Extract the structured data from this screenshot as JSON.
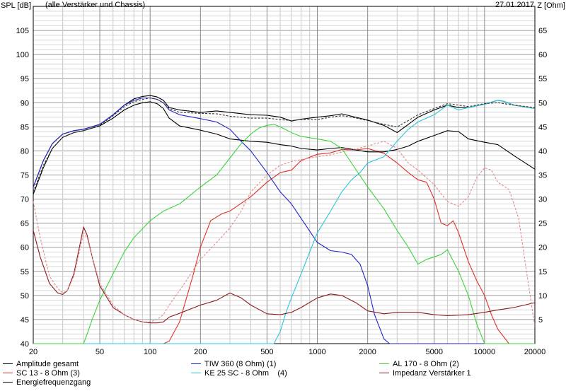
{
  "chart_data": {
    "type": "line",
    "header_left": "(alle Verstärker und Chassis)",
    "header_right": "27.01.2017",
    "ylabel": "SPL [dB]",
    "y2label": "Z [Ohm]",
    "xlim": [
      20,
      20000
    ],
    "xscale": "log",
    "ylim": [
      40,
      110
    ],
    "y2lim": [
      0,
      70
    ],
    "grid": true,
    "xticks": [
      {
        "value": 20,
        "label": "20"
      },
      {
        "value": 50,
        "label": "50"
      },
      {
        "value": 100,
        "label": "100"
      },
      {
        "value": 200,
        "label": "200"
      },
      {
        "value": 500,
        "label": "500"
      },
      {
        "value": 1000,
        "label": "1000"
      },
      {
        "value": 2000,
        "label": "2000"
      },
      {
        "value": 5000,
        "label": "5000"
      },
      {
        "value": 10000,
        "label": "10000"
      },
      {
        "value": 20000,
        "label": "20000"
      }
    ],
    "yticks": [
      105,
      100,
      95,
      90,
      85,
      80,
      75,
      70,
      65,
      60,
      55,
      50,
      45,
      40
    ],
    "y2ticks": [
      65,
      60,
      55,
      50,
      45,
      40,
      35,
      30,
      25,
      20,
      15,
      10,
      5
    ],
    "series": [
      {
        "name": "Amplitude gesamt",
        "color": "#000000",
        "dashed": false,
        "axis": "left",
        "x": [
          20,
          23,
          26,
          30,
          35,
          40,
          50,
          60,
          70,
          80,
          90,
          100,
          110,
          120,
          130,
          150,
          200,
          250,
          300,
          400,
          500,
          600,
          700,
          800,
          1000,
          1200,
          1400,
          1600,
          2000,
          2500,
          3000,
          3500,
          4000,
          5000,
          6000,
          7000,
          8000,
          10000,
          12000,
          13000,
          15000,
          20000
        ],
        "y": [
          72.5,
          78,
          81.5,
          83.5,
          84.2,
          84.5,
          85.5,
          87.5,
          89.5,
          90.8,
          91.3,
          91.5,
          91.2,
          90.5,
          89.0,
          88.5,
          88.0,
          88.3,
          88.0,
          87.5,
          87.4,
          87.0,
          86.2,
          86.6,
          87.0,
          87.3,
          87.7,
          87.2,
          86.4,
          85.3,
          83.8,
          85.5,
          87.0,
          88.5,
          89.5,
          89.0,
          89.0,
          89.7,
          90.5,
          90.3,
          89.5,
          88.8
        ]
      },
      {
        "name": "SC 13 - 8 Ohm (3)",
        "color": "#e0302a",
        "dashed": false,
        "axis": "left",
        "x": [
          20,
          120,
          130,
          150,
          180,
          200,
          230,
          270,
          300,
          400,
          500,
          600,
          700,
          800,
          1000,
          1200,
          1400,
          1700,
          2000,
          2500,
          3000,
          3500,
          4000,
          4500,
          5000,
          5500,
          6000,
          6500,
          7000,
          8000,
          9000,
          10000,
          11000,
          12000,
          14000,
          20000
        ],
        "y": [
          40,
          40,
          40.5,
          44.5,
          54,
          60,
          65.5,
          67,
          67.5,
          70.5,
          73.5,
          75.5,
          76.0,
          78.0,
          79.3,
          79.6,
          80.3,
          80.2,
          80.5,
          79.5,
          77.5,
          75.5,
          74.0,
          73.5,
          70.0,
          65.0,
          64.5,
          65.5,
          63.0,
          57.0,
          53.0,
          50.0,
          46.0,
          43.0,
          40.0,
          40.0
        ]
      },
      {
        "name": "Energiefrequenzgang",
        "color": "#000000",
        "dashed": false,
        "axis": "left",
        "x": [
          20,
          23,
          26,
          30,
          35,
          40,
          50,
          60,
          70,
          80,
          90,
          100,
          110,
          120,
          130,
          150,
          200,
          250,
          300,
          400,
          500,
          600,
          700,
          800,
          1000,
          1200,
          1400,
          1700,
          2000,
          2500,
          3000,
          3500,
          4000,
          5000,
          6000,
          7000,
          8000,
          10000,
          12000,
          15000,
          20000
        ],
        "y": [
          71,
          76.5,
          80.5,
          82.8,
          83.8,
          84.2,
          85.2,
          86.8,
          88.5,
          89.5,
          90.0,
          90.2,
          89.8,
          88.8,
          86.8,
          85.2,
          84.3,
          83.5,
          82.5,
          82.0,
          81.8,
          81.3,
          81.0,
          80.5,
          80.2,
          80.5,
          80.7,
          80.2,
          79.8,
          79.8,
          80.3,
          81.0,
          82.0,
          83.2,
          84.2,
          84.0,
          82.5,
          81.8,
          81.3,
          79.0,
          76.2
        ]
      },
      {
        "name": "TIW 360 (8 Ohm) (1)",
        "color": "#1f25c8",
        "dashed": false,
        "axis": "left",
        "x": [
          20,
          23,
          26,
          30,
          35,
          40,
          50,
          60,
          70,
          80,
          90,
          100,
          110,
          120,
          130,
          150,
          200,
          250,
          300,
          350,
          400,
          500,
          600,
          700,
          800,
          1000,
          1200,
          1400,
          1600,
          1800,
          2000,
          2200,
          2500,
          2700,
          3000,
          20000
        ],
        "y": [
          72.5,
          78,
          81.5,
          83.5,
          84.2,
          84.5,
          85.5,
          87.5,
          89.5,
          90.5,
          91.0,
          91.0,
          90.7,
          90.0,
          88.5,
          87.5,
          86.7,
          86.0,
          84.5,
          82.0,
          80.0,
          75.5,
          71.5,
          69.0,
          66.0,
          61.0,
          59.3,
          59.0,
          58.5,
          56.5,
          52.0,
          46.0,
          41.0,
          40.0,
          40.0,
          40.0
        ]
      },
      {
        "name": "KE 25 SC - 8 Ohm    (4)",
        "color": "#29c6d8",
        "dashed": false,
        "axis": "left",
        "x": [
          20,
          550,
          600,
          650,
          700,
          800,
          900,
          1000,
          1200,
          1400,
          1600,
          1800,
          2000,
          2500,
          3000,
          3500,
          4000,
          5000,
          6000,
          7000,
          8000,
          10000,
          12000,
          13000,
          15000,
          20000
        ],
        "y": [
          40,
          40,
          42.5,
          46.5,
          49.5,
          54.5,
          59.0,
          63.0,
          67.5,
          71.5,
          74.0,
          75.5,
          77.5,
          78.8,
          82.0,
          84.5,
          86.0,
          87.5,
          89.5,
          88.5,
          89.0,
          89.7,
          90.5,
          90.3,
          89.5,
          88.8
        ]
      },
      {
        "name": "AL 170 - 8 Ohm (2)",
        "color": "#3cd23c",
        "dashed": false,
        "axis": "left",
        "x": [
          20,
          40,
          42,
          45,
          50,
          60,
          70,
          80,
          100,
          120,
          150,
          200,
          250,
          300,
          350,
          400,
          450,
          500,
          550,
          600,
          700,
          800,
          1000,
          1200,
          1400,
          1600,
          2000,
          2500,
          3000,
          3500,
          4000,
          4500,
          5000,
          5500,
          6000,
          7000,
          8000,
          9000,
          10000,
          20000
        ],
        "y": [
          40,
          40,
          42,
          45,
          49,
          54.5,
          59,
          62,
          65.5,
          67.5,
          69,
          72.5,
          75,
          78.5,
          81.5,
          83.5,
          84.8,
          85.3,
          85.5,
          85.0,
          83.8,
          83.0,
          82.5,
          82.0,
          80.5,
          77.5,
          72.5,
          68.0,
          63.5,
          60.0,
          56.5,
          57.5,
          58.0,
          58.5,
          59.5,
          55.0,
          50.0,
          44.0,
          40.0,
          40.0
        ]
      },
      {
        "name": "Impedanz Verstärker 1",
        "color": "#8b1a1a",
        "dashed": false,
        "axis": "right",
        "x": [
          20,
          22,
          25,
          28,
          30,
          32,
          35,
          38,
          40,
          42,
          45,
          50,
          60,
          70,
          80,
          90,
          100,
          110,
          120,
          130,
          150,
          200,
          250,
          300,
          350,
          400,
          500,
          600,
          700,
          800,
          1000,
          1200,
          1400,
          1700,
          2000,
          2500,
          3000,
          4000,
          5000,
          6000,
          8000,
          10000,
          12000,
          15000,
          20000
        ],
        "y": [
          23.5,
          18,
          12.5,
          10.5,
          10.2,
          11.0,
          14.5,
          20.5,
          24.2,
          22.5,
          18.0,
          12.0,
          7.5,
          6.0,
          5.0,
          4.5,
          4.3,
          4.3,
          4.5,
          5.5,
          6.3,
          8.0,
          9.0,
          10.5,
          9.5,
          8.0,
          6.2,
          6.0,
          6.5,
          7.5,
          9.5,
          10.3,
          10.0,
          8.5,
          6.8,
          6.2,
          6.5,
          6.5,
          6.0,
          5.8,
          6.0,
          6.5,
          7.0,
          7.5,
          8.5
        ]
      },
      {
        "name": "",
        "color": "#333333",
        "dashed": true,
        "axis": "left",
        "x": [
          20,
          23,
          26,
          30,
          35,
          40,
          50,
          60,
          70,
          80,
          90,
          100,
          110,
          120,
          130,
          150,
          200,
          250,
          300,
          400,
          500,
          600,
          700,
          800,
          1000,
          1200,
          1400,
          1600,
          2000,
          2500,
          3000,
          3500,
          4000,
          5000,
          6000,
          7000,
          8000,
          10000,
          12000,
          15000,
          20000
        ],
        "y": [
          71.5,
          77,
          80.5,
          82.8,
          83.8,
          84.2,
          85.3,
          87.3,
          89.2,
          90.2,
          90.7,
          91.0,
          90.7,
          90.0,
          88.8,
          88.0,
          87.8,
          87.7,
          87.2,
          86.8,
          86.8,
          86.5,
          86.3,
          86.5,
          86.5,
          87.0,
          87.3,
          87.0,
          86.3,
          85.5,
          85.0,
          86.3,
          87.5,
          88.8,
          89.8,
          89.5,
          89.2,
          89.8,
          90.0,
          89.5,
          89.0
        ]
      },
      {
        "name": "",
        "color": "#e08a8a",
        "dashed": true,
        "axis": "right",
        "x": [
          20,
          22,
          25,
          28,
          30,
          32,
          35,
          38,
          40,
          42,
          45,
          50,
          60,
          70,
          80,
          90,
          100,
          110,
          120,
          130,
          150,
          200,
          250,
          300,
          350,
          400,
          500,
          600,
          700,
          800,
          1000,
          1200,
          1500,
          2000,
          2500,
          3000,
          3500,
          4000,
          5000,
          6000,
          7000,
          8000,
          9000,
          10000,
          11000,
          12000,
          14000,
          16000,
          18000,
          20000
        ],
        "y": [
          29.5,
          22,
          14,
          11.5,
          10.5,
          11.0,
          14.0,
          19.5,
          23.0,
          22.0,
          18.0,
          12.5,
          8.0,
          6.0,
          5.0,
          4.5,
          4.5,
          5.0,
          6.0,
          8.0,
          11.0,
          17.5,
          21.0,
          24.0,
          27.5,
          31.5,
          35.0,
          37.0,
          37.8,
          38.2,
          38.8,
          39.2,
          40.0,
          41.0,
          42.0,
          40.5,
          37.5,
          36.0,
          33.0,
          29.5,
          28.5,
          30.5,
          34.5,
          36.5,
          36.0,
          33.5,
          32.0,
          26.0,
          14.0,
          3.5
        ]
      }
    ]
  },
  "legend": [
    {
      "label": "Amplitude gesamt",
      "color": "#000000"
    },
    {
      "label": "TIW 360 (8 Ohm) (1)",
      "color": "#1f25c8"
    },
    {
      "label": "AL 170 - 8 Ohm (2)",
      "color": "#3cd23c"
    },
    {
      "label": "SC 13 - 8 Ohm (3)",
      "color": "#e0302a"
    },
    {
      "label": "KE 25 SC - 8 Ohm    (4)",
      "color": "#29c6d8"
    },
    {
      "label": "Impedanz Verstärker 1",
      "color": "#8b1a1a"
    },
    {
      "label": "Energiefrequenzgang",
      "color": "#000000"
    }
  ]
}
